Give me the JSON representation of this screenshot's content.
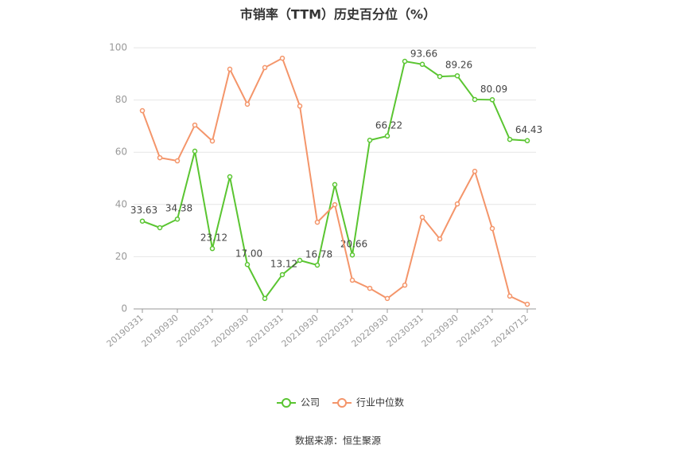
{
  "chart_data": {
    "type": "line",
    "title": "市销率（TTM）历史百分位（%）",
    "categories": [
      "20190331",
      null,
      "20190930",
      null,
      "20200331",
      null,
      "20200930",
      null,
      "20210331",
      null,
      "20210930",
      null,
      "20220331",
      null,
      "20220930",
      null,
      "20230331",
      null,
      "20230930",
      null,
      "20240331",
      null,
      "20240712"
    ],
    "series": [
      {
        "name": "公司",
        "color": "#5ac531",
        "values": [
          33.63,
          31.1,
          34.38,
          60.4,
          23.12,
          50.6,
          17.0,
          4.0,
          13.12,
          18.6,
          16.78,
          47.6,
          20.66,
          64.6,
          66.22,
          94.8,
          93.66,
          89.0,
          89.26,
          80.2,
          80.09,
          64.9,
          64.43
        ],
        "value_labels": [
          "33.63",
          null,
          "34.38",
          null,
          "23.12",
          null,
          "17.00",
          null,
          "13.12",
          null,
          "16.78",
          null,
          "20.66",
          null,
          "66.22",
          null,
          "93.66",
          null,
          "89.26",
          null,
          "80.09",
          null,
          "64.43"
        ]
      },
      {
        "name": "行业中位数",
        "color": "#f4956a",
        "values": [
          75.9,
          57.9,
          56.7,
          70.4,
          64.3,
          91.8,
          78.4,
          92.4,
          96.0,
          77.7,
          33.2,
          39.9,
          11.0,
          7.9,
          4.0,
          9.1,
          35.1,
          26.8,
          40.2,
          52.7,
          30.8,
          4.9,
          1.8
        ]
      }
    ],
    "ylim": [
      0,
      100
    ],
    "yticks": [
      0,
      20,
      40,
      60,
      80,
      100
    ],
    "grid": true,
    "legend": "bottom",
    "source": "数据来源：恒生聚源"
  }
}
